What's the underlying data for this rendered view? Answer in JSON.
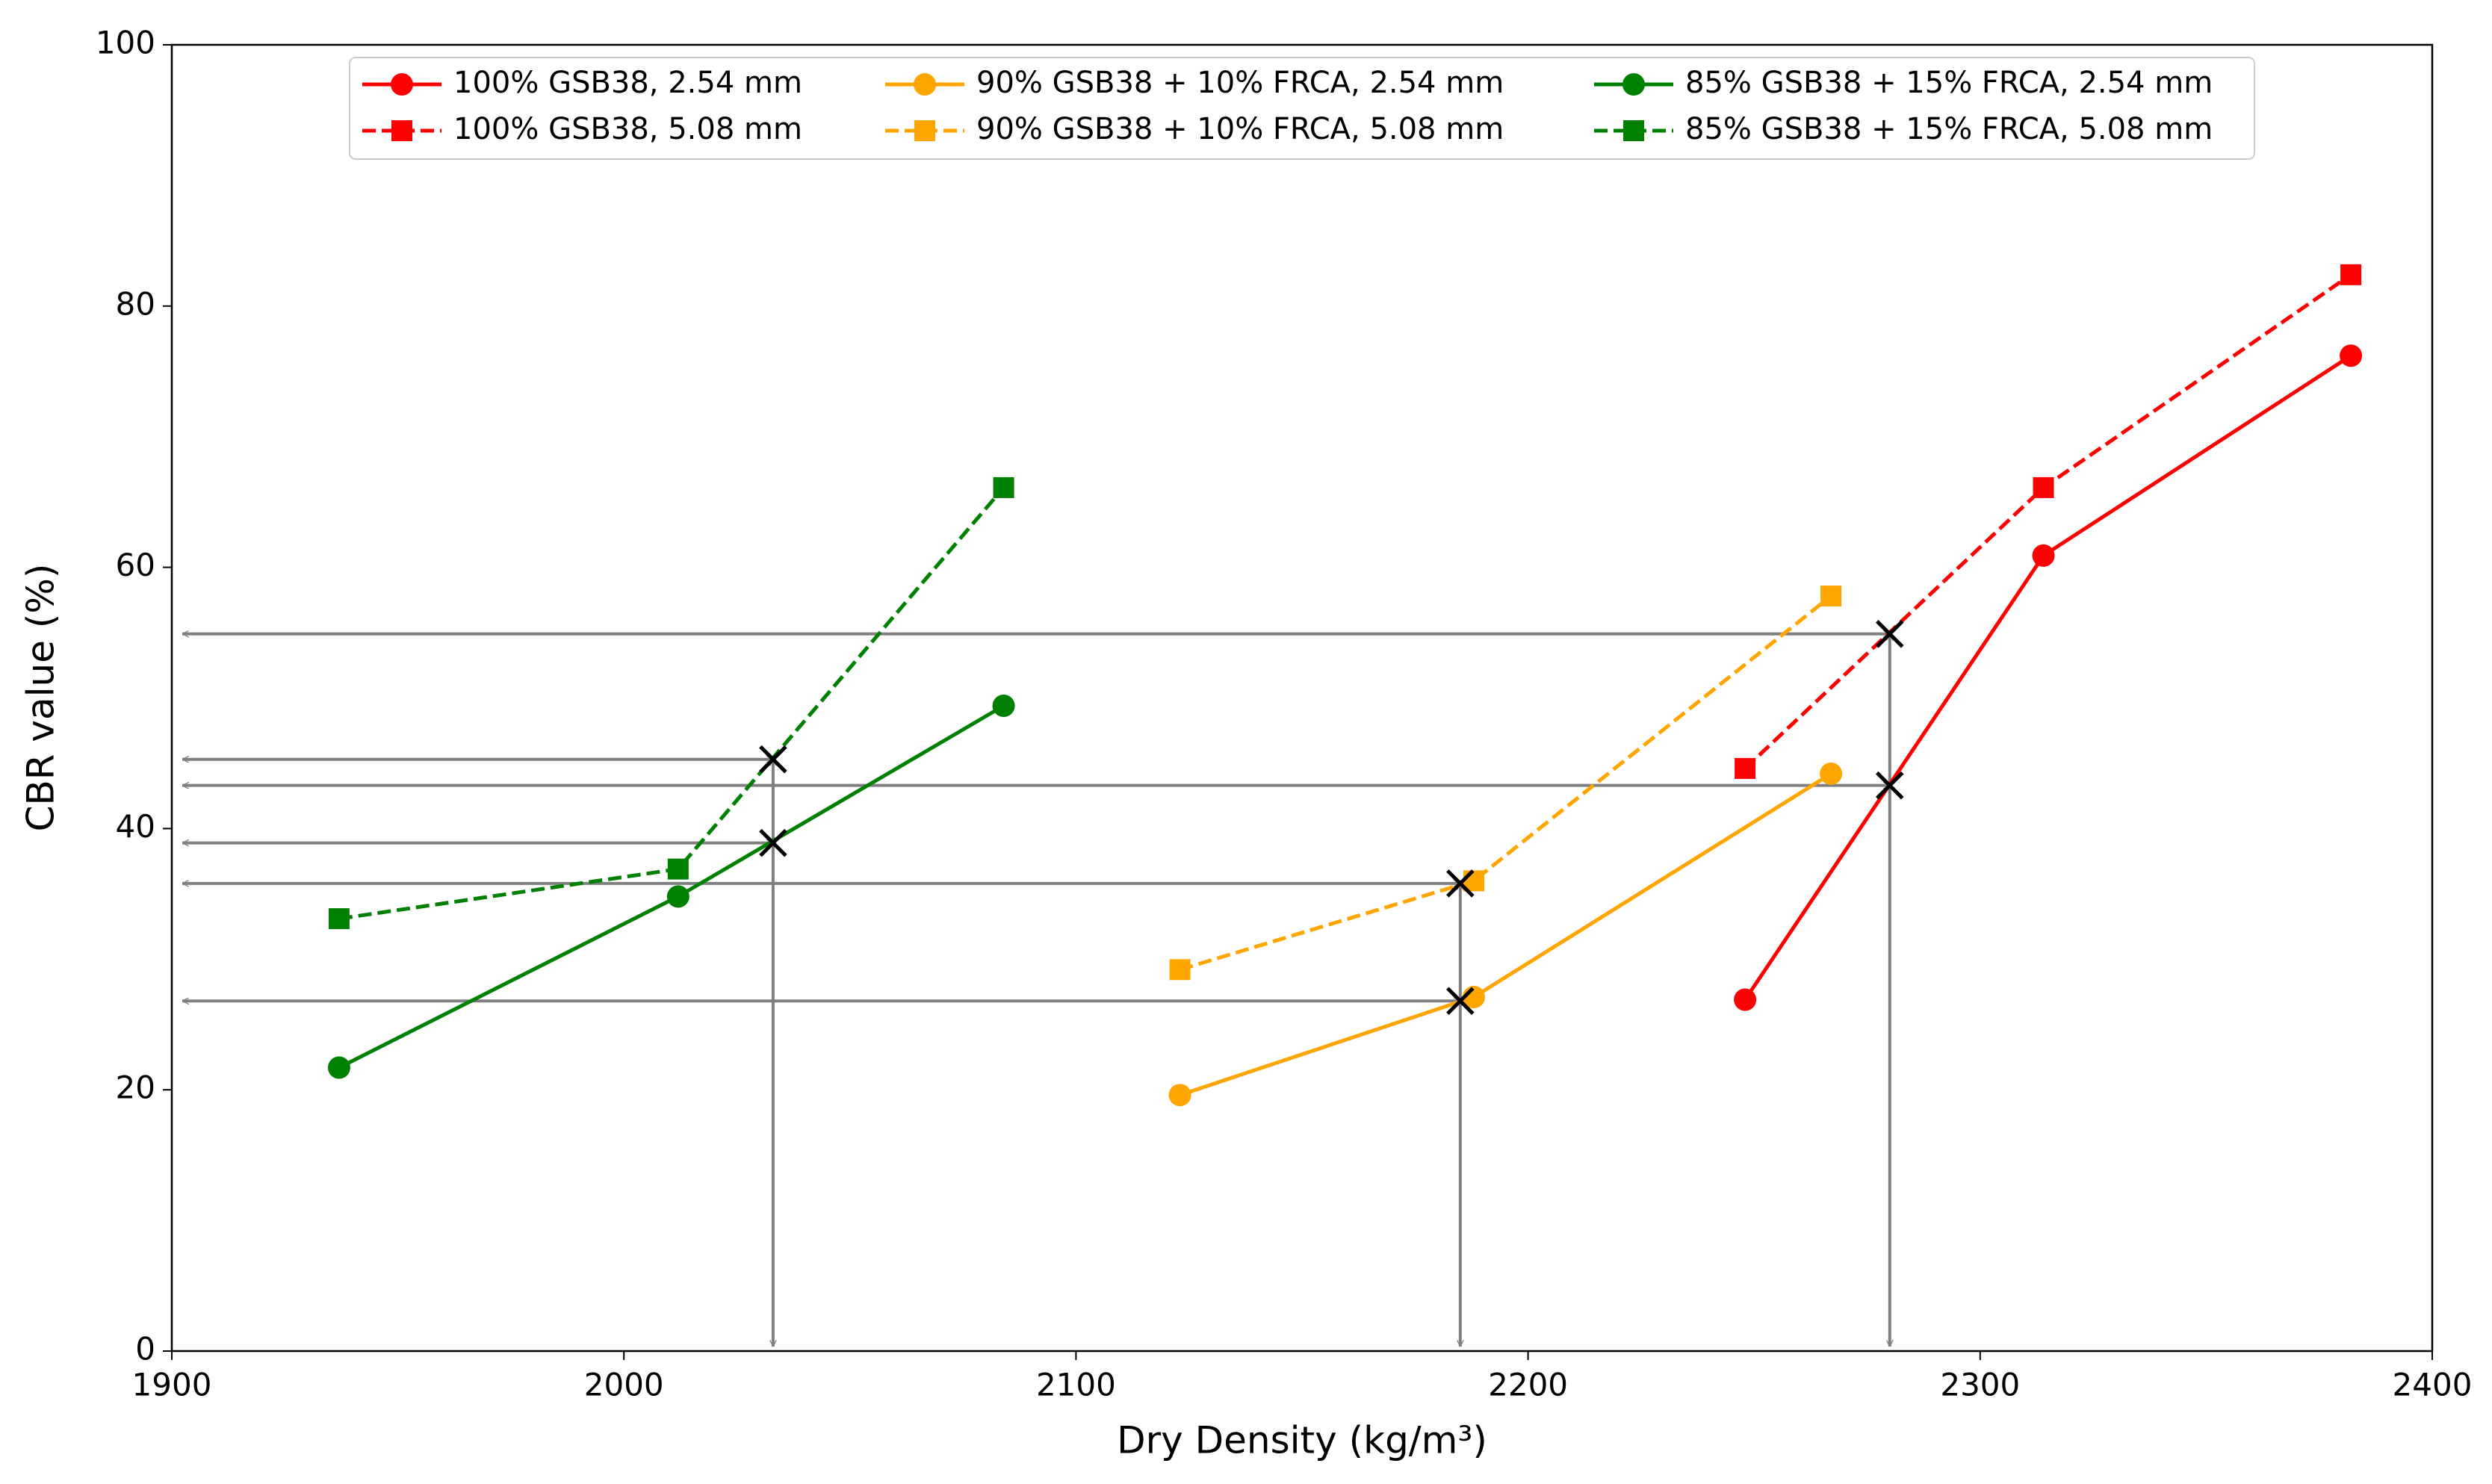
{
  "chart_data": {
    "type": "line",
    "x_label": "Dry Density (kg/m³)",
    "y_label": "CBR value (%)",
    "xlim": [
      1900,
      2400
    ],
    "xticks": [
      1900,
      2000,
      2100,
      2200,
      2300,
      2400
    ],
    "ylim": [
      0,
      100
    ],
    "yticks": [
      0,
      20,
      40,
      60,
      80,
      100
    ],
    "grid": false,
    "legend": "top-center",
    "series": [
      {
        "name": "100% GSB38, 2.54 mm",
        "color": "#ff0000",
        "marker": "circle",
        "linestyle": "solid",
        "x": [
          2248,
          2314,
          2382
        ],
        "values": [
          26.9,
          60.9,
          76.2
        ]
      },
      {
        "name": "100% GSB38, 5.08 mm",
        "color": "#ff0000",
        "marker": "square",
        "linestyle": "dashed",
        "x": [
          2248,
          2314,
          2382
        ],
        "values": [
          44.6,
          66.1,
          82.4
        ]
      },
      {
        "name": "90% GSB38 + 10% FRCA, 2.54 mm",
        "color": "#ffa500",
        "marker": "circle",
        "linestyle": "solid",
        "x": [
          2123,
          2188,
          2267
        ],
        "values": [
          19.6,
          27.1,
          44.2
        ]
      },
      {
        "name": "90% GSB38 + 10% FRCA, 5.08 mm",
        "color": "#ffa500",
        "marker": "square",
        "linestyle": "dashed",
        "x": [
          2123,
          2188,
          2267
        ],
        "values": [
          29.2,
          36.0,
          57.8
        ]
      },
      {
        "name": "85% GSB38 + 15% FRCA, 2.54 mm",
        "color": "#008000",
        "marker": "circle",
        "linestyle": "solid",
        "x": [
          1937,
          2012,
          2084
        ],
        "values": [
          21.7,
          34.8,
          49.4
        ]
      },
      {
        "name": "85% GSB38 + 15% FRCA, 5.08 mm",
        "color": "#008000",
        "marker": "square",
        "linestyle": "dashed",
        "x": [
          1937,
          2012,
          2084
        ],
        "values": [
          33.1,
          36.9,
          66.1
        ]
      }
    ],
    "crossings": {
      "color": "#808080",
      "x": [
        2033,
        2033,
        2185,
        2185,
        2280,
        2280
      ],
      "values": [
        45.3,
        38.9,
        35.8,
        26.8,
        54.9,
        43.3
      ]
    }
  }
}
